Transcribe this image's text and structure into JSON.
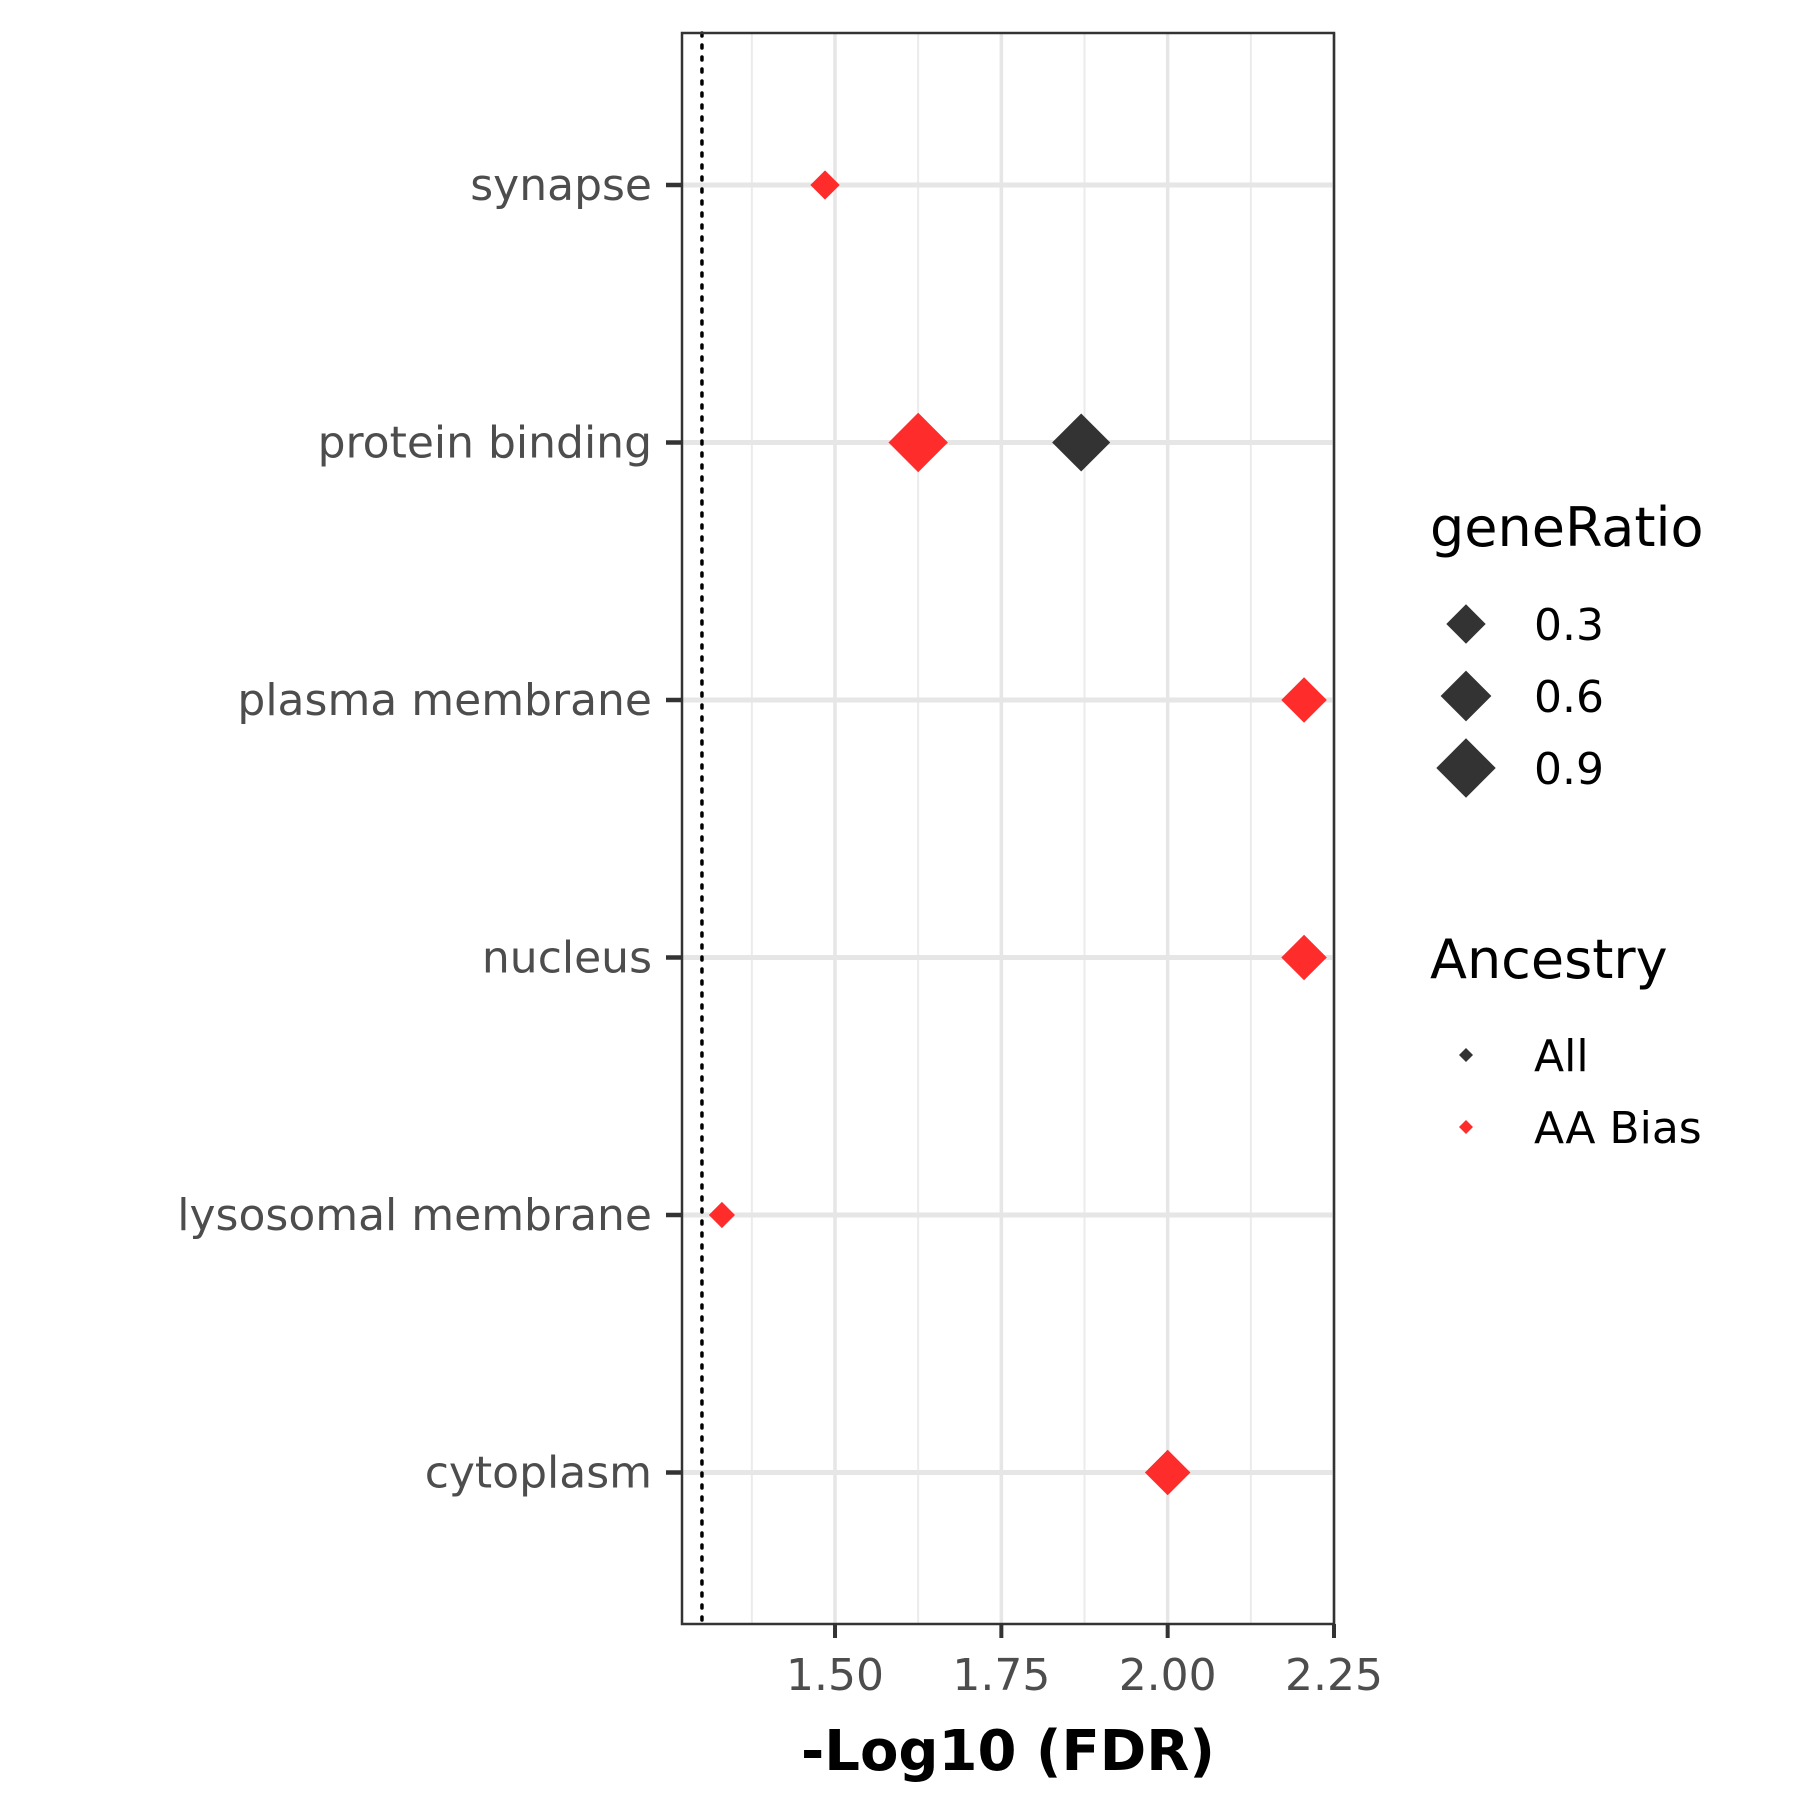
{
  "chart_data": {
    "type": "scatter",
    "xlabel": "-Log10 (FDR)",
    "ylabel": "",
    "xlim": [
      1.27,
      2.25
    ],
    "x_ticks": [
      "1.50",
      "1.75",
      "2.00",
      "2.25"
    ],
    "x_tick_values": [
      1.5,
      1.75,
      2.0,
      2.25
    ],
    "x_minor_values": [
      1.375,
      1.625,
      1.875,
      2.125
    ],
    "grid": true,
    "threshold_line": {
      "x": 1.3,
      "style": "dotted"
    },
    "categories": [
      "synapse",
      "protein binding",
      "plasma membrane",
      "nucleus",
      "lysosomal membrane",
      "cytoplasm"
    ],
    "series": [
      {
        "name": "All",
        "color": "#333333",
        "points": [
          {
            "category": "protein binding",
            "x": 1.87,
            "geneRatio": 0.85
          }
        ]
      },
      {
        "name": "AA Bias",
        "color": "#ff2c2c",
        "points": [
          {
            "category": "synapse",
            "x": 1.485,
            "geneRatio": 0.12
          },
          {
            "category": "protein binding",
            "x": 1.625,
            "geneRatio": 0.9
          },
          {
            "category": "plasma membrane",
            "x": 2.205,
            "geneRatio": 0.45
          },
          {
            "category": "nucleus",
            "x": 2.205,
            "geneRatio": 0.45
          },
          {
            "category": "lysosomal membrane",
            "x": 1.33,
            "geneRatio": 0.08
          },
          {
            "category": "cytoplasm",
            "x": 2.0,
            "geneRatio": 0.45
          }
        ]
      }
    ],
    "legend": {
      "placement": "right",
      "size_title": "geneRatio",
      "size_entries": [
        {
          "label": "0.3",
          "value": 0.3
        },
        {
          "label": "0.6",
          "value": 0.6
        },
        {
          "label": "0.9",
          "value": 0.9
        }
      ],
      "color_title": "Ancestry",
      "color_entries": [
        {
          "label": "All",
          "color": "#333333"
        },
        {
          "label": "AA Bias",
          "color": "#ff2c2c"
        }
      ]
    }
  }
}
